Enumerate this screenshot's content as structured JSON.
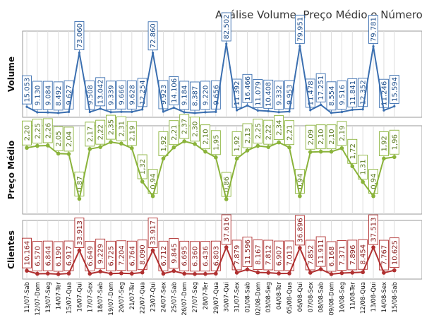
{
  "chart_data": {
    "type": "line",
    "title": "Análise Volume, Preço Médio e Número de C",
    "categories": [
      "11/07-Sab",
      "12/07-Dom",
      "13/07-Seg",
      "14/07-Ter",
      "15/07-Qua",
      "16/07-Qui",
      "17/07-Sex",
      "18/07-Sab",
      "19/07-Dom",
      "20/07-Seg",
      "21/07-Ter",
      "22/07-Qua",
      "23/07-Qui",
      "24/07-Sex",
      "25/07-Sab",
      "26/07-Dom",
      "27/07-Seg",
      "28/07-Ter",
      "29/07-Qua",
      "30/07-Qui",
      "31/07-Sex",
      "01/08-Sab",
      "02/08-Dom",
      "03/08-Seg",
      "04/08-Ter",
      "05/08-Qua",
      "06/08-Qui",
      "07/08-Sex",
      "08/08-Sab",
      "09/08-Dom",
      "10/08-Seg",
      "11/08-Ter",
      "12/08-Qua",
      "13/08-Qui",
      "14/08-Sex",
      "15/08-Sab"
    ],
    "panels": [
      {
        "ylabel": "Volume",
        "color": "#3b6fb0",
        "ylim": [
          0,
          100000
        ],
        "values": [
          15053,
          9130,
          9084,
          8492,
          9627,
          73060,
          9508,
          13042,
          9339,
          9666,
          9628,
          12254,
          72860,
          9923,
          14106,
          9184,
          8387,
          9220,
          9656,
          82502,
          11392,
          16466,
          11079,
          10408,
          9332,
          9953,
          79951,
          11478,
          17251,
          8554,
          9516,
          11841,
          12352,
          79781,
          11246,
          15594
        ],
        "labels": [
          "15.053",
          "9.130",
          "9.084",
          "8.492",
          "9.627",
          "73.060",
          "9.508",
          "13.042",
          "9.339",
          "9.666",
          "9.628",
          "12.254",
          "72.860",
          "9.923",
          "14.106",
          "9.184",
          "8.387",
          "9.220",
          "9.656",
          "82.502",
          "11.392",
          "16.466",
          "11.079",
          "10.408",
          "9.332",
          "9.953",
          "79.951",
          "11.478",
          "17.251",
          "8.554",
          "9.516",
          "11.841",
          "12.352",
          "79.781",
          "11.246",
          "15.594"
        ]
      },
      {
        "ylabel": "Preço Médio",
        "color": "#8ab33a",
        "ylim": [
          0,
          3.5
        ],
        "values": [
          2.2,
          2.25,
          2.26,
          2.05,
          2.04,
          0.87,
          2.17,
          2.22,
          2.35,
          2.31,
          2.19,
          1.32,
          0.94,
          1.92,
          2.21,
          2.37,
          2.3,
          2.1,
          1.95,
          0.86,
          1.92,
          2.13,
          2.25,
          2.22,
          2.34,
          2.21,
          0.94,
          2.09,
          2.1,
          2.1,
          2.19,
          1.72,
          1.31,
          0.94,
          1.92,
          1.96
        ],
        "labels": [
          "2,20",
          "2,25",
          "2,26",
          "2,05",
          "2,04",
          "0,87",
          "2,17",
          "2,22",
          "2,35",
          "2,31",
          "2,19",
          "1,32",
          "0,94",
          "1,92",
          "2,21",
          "2,37",
          "2,30",
          "2,10",
          "1,95",
          "0,86",
          "1,92",
          "2,13",
          "2,25",
          "2,22",
          "2,34",
          "2,21",
          "0,94",
          "2,09",
          "2,10",
          "2,10",
          "2,19",
          "1,72",
          "1,31",
          "0,94",
          "1,92",
          "1,96"
        ]
      },
      {
        "ylabel": "Clientes",
        "color": "#b03030",
        "ylim": [
          0,
          100000
        ],
        "values": [
          10164,
          6570,
          6844,
          6190,
          6917,
          33913,
          6649,
          9229,
          6725,
          7204,
          6764,
          8090,
          33917,
          6712,
          9845,
          6695,
          6360,
          6436,
          6803,
          37616,
          7879,
          11596,
          8167,
          7812,
          6907,
          7013,
          36896,
          7852,
          11911,
          6168,
          7371,
          7896,
          8454,
          37513,
          7767,
          10625
        ],
        "labels": [
          "10.164",
          "6.570",
          "6.844",
          "6.190",
          "6.917",
          "33.913",
          "6.649",
          "9.229",
          "6.725",
          "7.204",
          "6.764",
          "8.090",
          "33.917",
          "6.712",
          "9.845",
          "6.695",
          "6.360",
          "6.436",
          "6.803",
          "37.616",
          "7.879",
          "11.596",
          "8.167",
          "7.812",
          "6.907",
          "7.013",
          "36.896",
          "7.852",
          "11.911",
          "6.168",
          "7.371",
          "7.896",
          "8.454",
          "37.513",
          "7.767",
          "10.625"
        ]
      }
    ],
    "grid": true,
    "legend": "none"
  }
}
